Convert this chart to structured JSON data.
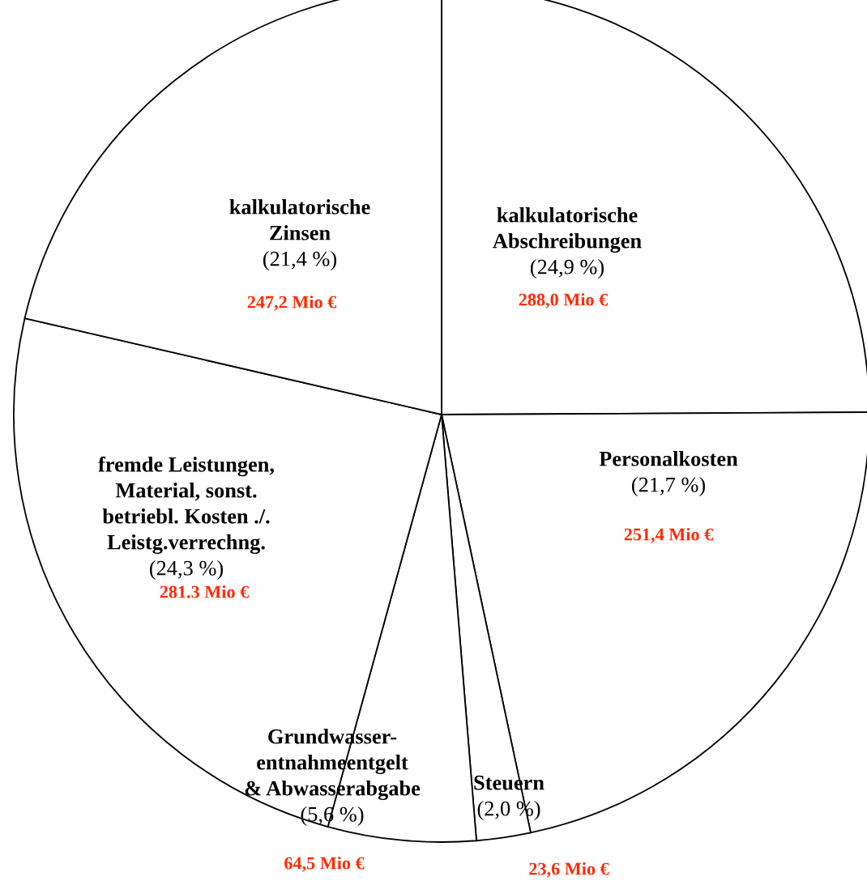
{
  "chart_data": {
    "type": "pie",
    "categories": [
      "kalkulatorische\nAbschreibungen\n(24,9 %)",
      "Personalkosten\n(21,7 %)",
      "Steuern\n(2,0 %)",
      "Grundwasser-\nentnahmeentgelt\n& Abwasserabgabe\n(5,6 %)",
      "fremde Leistungen,\nMaterial, sonst.\nbetriebl. Kosten ./.\nLeistg.verrechng.\n(24,3 %)",
      "kalkulatorische\nZinsen\n(21,4 %)"
    ],
    "values": [
      288.0,
      251.4,
      23.6,
      64.5,
      281.3,
      247.2
    ],
    "value_labels": [
      "288,0 Mio €",
      "251,4 Mio €",
      "23,6 Mio €",
      "64,5 Mio €",
      "281.3 Mio €",
      "247,2 Mio €"
    ],
    "colors": [
      "#ffffff",
      "#ffffff",
      "#ffffff",
      "#ffffff",
      "#ffffff",
      "#ffffff"
    ],
    "legend": false
  }
}
